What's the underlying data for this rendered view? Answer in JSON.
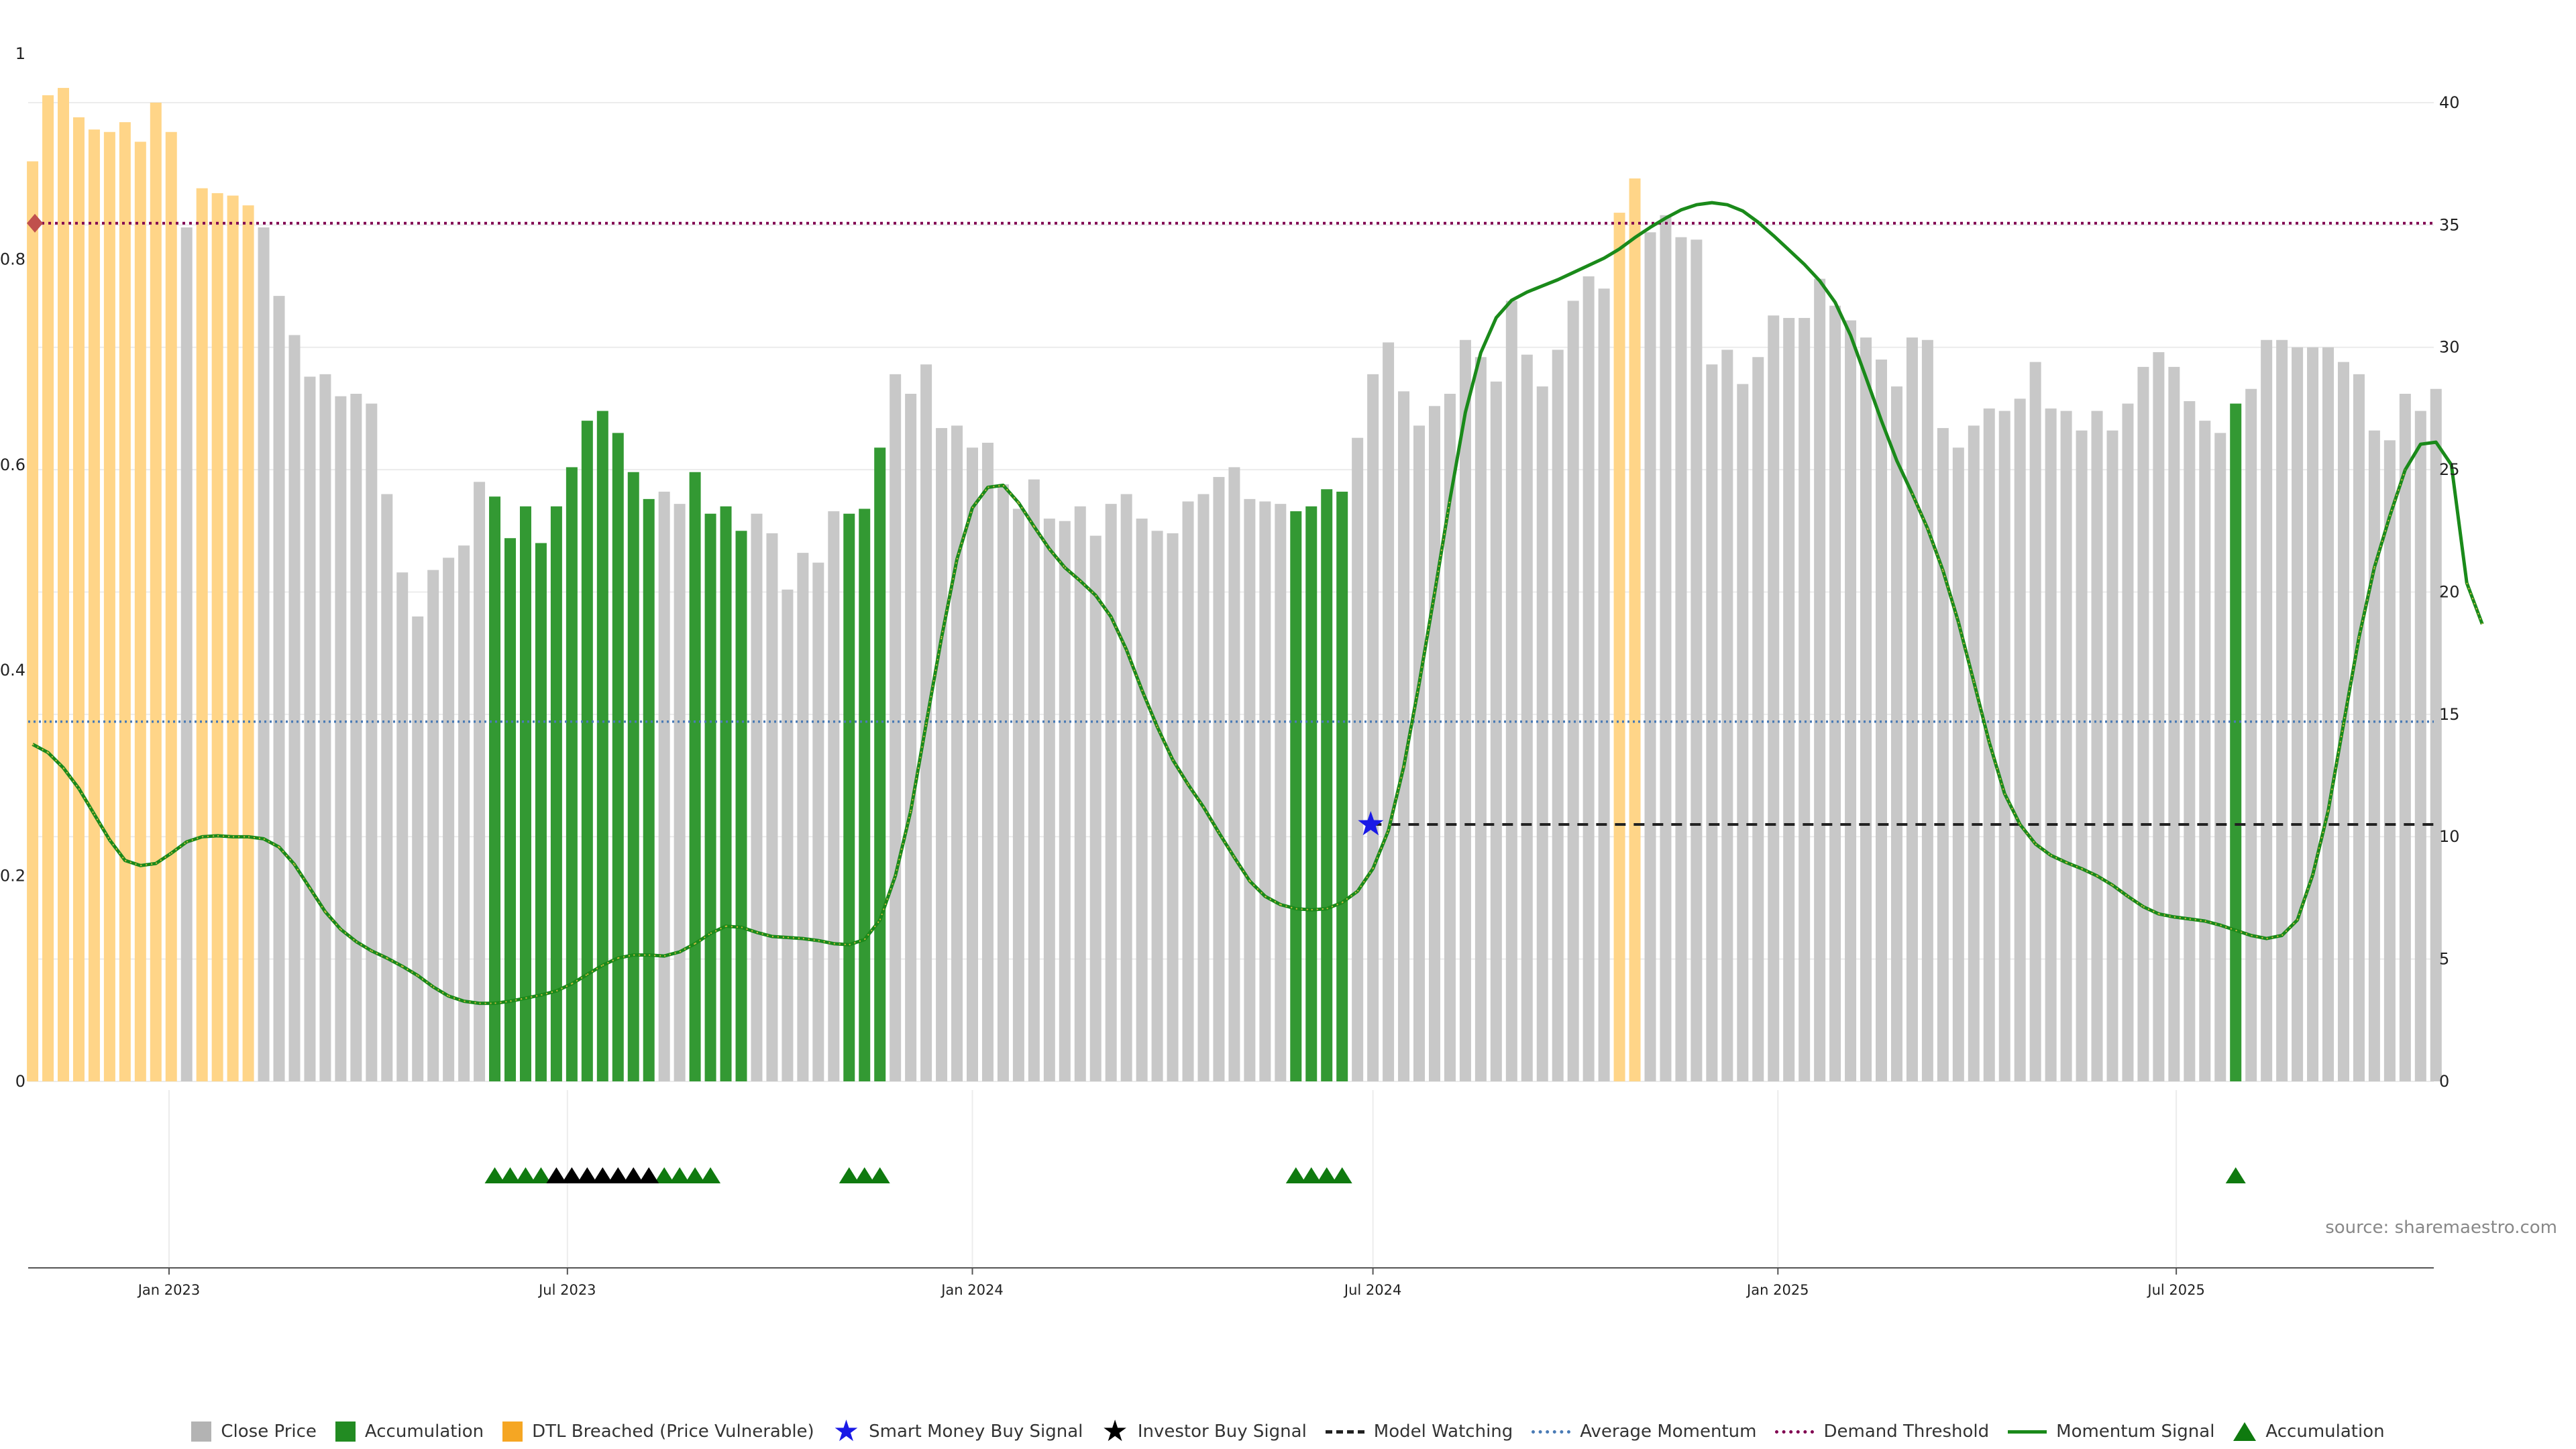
{
  "chart_data": {
    "type": "bar",
    "source_note": "source: sharemaestro.com",
    "left_axis": {
      "ylim": [
        0,
        1
      ],
      "ticks": [
        "0",
        "0.2",
        "0.4",
        "0.6",
        "0.8",
        "1"
      ]
    },
    "right_axis": {
      "ylim": [
        0,
        42
      ],
      "ticks": [
        "0",
        "5",
        "10",
        "15",
        "20",
        "25",
        "30",
        "35",
        "40"
      ]
    },
    "x_ticks": [
      "Jan 2023",
      "Jul 2023",
      "Jan 2024",
      "Jul 2024",
      "Jan 2025",
      "Jul 2025"
    ],
    "x_tick_dates": [
      "2023-01-01",
      "2023-07-01",
      "2024-01-01",
      "2024-07-01",
      "2025-01-01",
      "2025-07-01"
    ],
    "x_range": [
      "2022-10-29",
      "2025-10-26"
    ],
    "grid": true,
    "legend_placement": "bottom-center",
    "colors": {
      "close_price": "#c8c8c8",
      "accumulation": "#339933",
      "dtl_breached": "#ffd588",
      "smart_money": "#1a1ae6",
      "investor": "#000000",
      "model_watching": "#222222",
      "average_momentum": "#4a7bb5",
      "demand_threshold": "#800050",
      "momentum_signal": "#1a8a1a",
      "accumulation_marker": "#0f7a0f",
      "demand_marker": "#c0504d"
    },
    "close_price": {
      "start_week": "2022-10-31",
      "values": [
        37.6,
        40.3,
        40.6,
        39.4,
        38.9,
        38.8,
        39.2,
        38.4,
        40,
        38.8,
        34.9,
        36.5,
        36.3,
        36.2,
        35.8,
        34.9,
        32.1,
        30.5,
        28.8,
        28.9,
        28,
        28.1,
        27.7,
        24,
        20.8,
        19,
        20.9,
        21.4,
        21.9,
        24.5,
        23.9,
        22.2,
        23.5,
        22,
        23.5,
        25.1,
        27,
        27.4,
        26.5,
        24.9,
        23.8,
        24.1,
        23.6,
        24.9,
        23.2,
        23.5,
        22.5,
        23.2,
        22.4,
        20.1,
        21.6,
        21.2,
        23.3,
        23.2,
        23.4,
        25.9,
        28.9,
        28.1,
        29.3,
        26.7,
        26.8,
        25.9,
        26.1,
        24.4,
        23.4,
        24.6,
        23,
        22.9,
        23.5,
        22.3,
        23.6,
        24,
        23,
        22.5,
        22.4,
        23.7,
        24,
        24.7,
        25.1,
        23.8,
        23.7,
        23.6,
        23.3,
        23.5,
        24.2,
        24.1,
        26.3,
        28.9,
        30.2,
        28.2,
        26.8,
        27.6,
        28.1,
        30.3,
        29.6,
        28.6,
        31.9,
        29.7,
        28.4,
        29.9,
        31.9,
        32.9,
        32.4,
        35.5,
        36.9,
        34.7,
        35.4,
        34.5,
        34.4,
        29.3,
        29.9,
        28.5,
        29.6,
        31.3,
        31.2,
        31.2,
        32.8,
        31.7,
        31.1,
        30.4,
        29.5,
        28.4,
        30.4,
        30.3,
        26.7,
        25.9,
        26.8,
        27.5,
        27.4,
        27.9,
        29.4,
        27.5,
        27.4,
        26.6,
        27.4,
        26.6,
        27.7,
        29.2,
        29.8,
        29.2,
        27.8,
        27,
        26.5,
        27.7,
        28.3,
        30.3,
        30.3,
        30,
        30,
        30,
        29.4,
        28.9,
        26.6,
        26.2,
        28.1,
        27.4,
        28.3
      ],
      "accumulation_weeks": [
        30,
        31,
        32,
        33,
        34,
        35,
        36,
        37,
        38,
        39,
        40,
        43,
        44,
        45,
        46,
        53,
        54,
        55,
        82,
        83,
        84,
        85,
        143
      ],
      "dtl_breached_weeks": [
        0,
        1,
        2,
        3,
        4,
        5,
        6,
        7,
        8,
        9,
        11,
        12,
        13,
        14,
        103,
        104
      ]
    },
    "momentum_signal": {
      "start_week": "2022-10-31",
      "values": [
        0.328,
        0.32,
        0.305,
        0.285,
        0.26,
        0.235,
        0.215,
        0.21,
        0.212,
        0.222,
        0.233,
        0.238,
        0.239,
        0.238,
        0.238,
        0.236,
        0.228,
        0.211,
        0.188,
        0.165,
        0.148,
        0.136,
        0.127,
        0.12,
        0.112,
        0.103,
        0.092,
        0.083,
        0.078,
        0.076,
        0.076,
        0.078,
        0.081,
        0.084,
        0.088,
        0.095,
        0.104,
        0.113,
        0.12,
        0.123,
        0.123,
        0.122,
        0.126,
        0.134,
        0.144,
        0.151,
        0.15,
        0.145,
        0.141,
        0.14,
        0.139,
        0.137,
        0.134,
        0.133,
        0.138,
        0.157,
        0.2,
        0.263,
        0.348,
        0.432,
        0.508,
        0.558,
        0.578,
        0.58,
        0.563,
        0.54,
        0.518,
        0.5,
        0.487,
        0.473,
        0.452,
        0.42,
        0.381,
        0.345,
        0.313,
        0.289,
        0.267,
        0.242,
        0.218,
        0.195,
        0.18,
        0.172,
        0.168,
        0.167,
        0.168,
        0.174,
        0.185,
        0.207,
        0.244,
        0.306,
        0.387,
        0.475,
        0.566,
        0.651,
        0.709,
        0.743,
        0.76,
        0.768,
        0.774,
        0.78,
        0.787,
        0.794,
        0.801,
        0.81,
        0.821,
        0.831,
        0.84,
        0.848,
        0.853,
        0.855,
        0.853,
        0.847,
        0.836,
        0.823,
        0.809,
        0.795,
        0.779,
        0.758,
        0.726,
        0.685,
        0.643,
        0.604,
        0.572,
        0.538,
        0.497,
        0.447,
        0.389,
        0.33,
        0.28,
        0.25,
        0.231,
        0.22,
        0.213,
        0.207,
        0.2,
        0.191,
        0.18,
        0.17,
        0.163,
        0.16,
        0.158,
        0.156,
        0.152,
        0.147,
        0.142,
        0.139,
        0.142,
        0.157,
        0.201,
        0.263,
        0.348,
        0.432,
        0.5,
        0.55,
        0.595,
        0.62,
        0.622,
        0.6,
        0.485,
        0.445
      ]
    },
    "average_momentum": 0.35,
    "demand_threshold": 0.835,
    "model_watching": {
      "start_date": "2024-06-30",
      "value": 0.25
    },
    "smart_money_buy_signal": {
      "date": "2024-06-30",
      "value": 0.25
    },
    "accumulation_markers": [
      30,
      31,
      32,
      33,
      41,
      42,
      43,
      44,
      53,
      54,
      55,
      82,
      83,
      84,
      85,
      143
    ],
    "investor_buy_markers": [
      34,
      35,
      36,
      37,
      38,
      39,
      40
    ],
    "legend": [
      {
        "label": "Close Price",
        "kind": "box",
        "color": "#b3b3b3"
      },
      {
        "label": "Accumulation",
        "kind": "box",
        "color": "#228b22"
      },
      {
        "label": "DTL Breached (Price Vulnerable)",
        "kind": "box",
        "color": "#f5a623"
      },
      {
        "label": "Smart Money Buy Signal",
        "kind": "star",
        "color": "#1a1ae6"
      },
      {
        "label": "Investor Buy Signal",
        "kind": "star",
        "color": "#000000"
      },
      {
        "label": "Model Watching",
        "kind": "dash",
        "color": "#222222"
      },
      {
        "label": "Average Momentum",
        "kind": "dot",
        "color": "#4a7bb5"
      },
      {
        "label": "Demand Threshold",
        "kind": "dot",
        "color": "#800050"
      },
      {
        "label": "Momentum Signal",
        "kind": "line",
        "color": "#1a8a1a"
      },
      {
        "label": "Accumulation",
        "kind": "triangle",
        "color": "#0f7a0f"
      }
    ]
  }
}
